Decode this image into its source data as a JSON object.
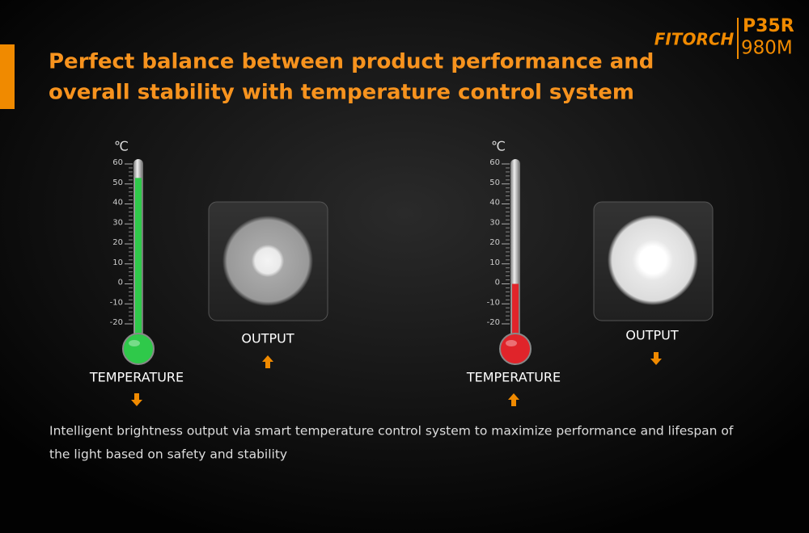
{
  "brand": {
    "logo": "FITORCH",
    "model": "P35R",
    "lumens": "980M"
  },
  "title": {
    "lines": [
      "Perfect balance between product performance and",
      "overall stability with temperature control system"
    ]
  },
  "panels": [
    {
      "unit": "℃",
      "ticks": [
        60,
        50,
        40,
        30,
        20,
        10,
        0,
        -10,
        -20
      ],
      "level": 53,
      "color": "#2fc94a",
      "temperature_label": "TEMPERATURE",
      "temperature_arrow": "down",
      "output_label": "OUTPUT",
      "output_arrow": "up"
    },
    {
      "unit": "℃",
      "ticks": [
        60,
        50,
        40,
        30,
        20,
        10,
        0,
        -10,
        -20
      ],
      "level": 0,
      "color": "#e0242a",
      "temperature_label": "TEMPERATURE",
      "temperature_arrow": "up",
      "output_label": "OUTPUT",
      "output_arrow": "down"
    }
  ],
  "description": {
    "lines": [
      "Intelligent brightness output via smart temperature control system to maximize performance and lifespan of",
      "the light based on safety and stability"
    ]
  }
}
